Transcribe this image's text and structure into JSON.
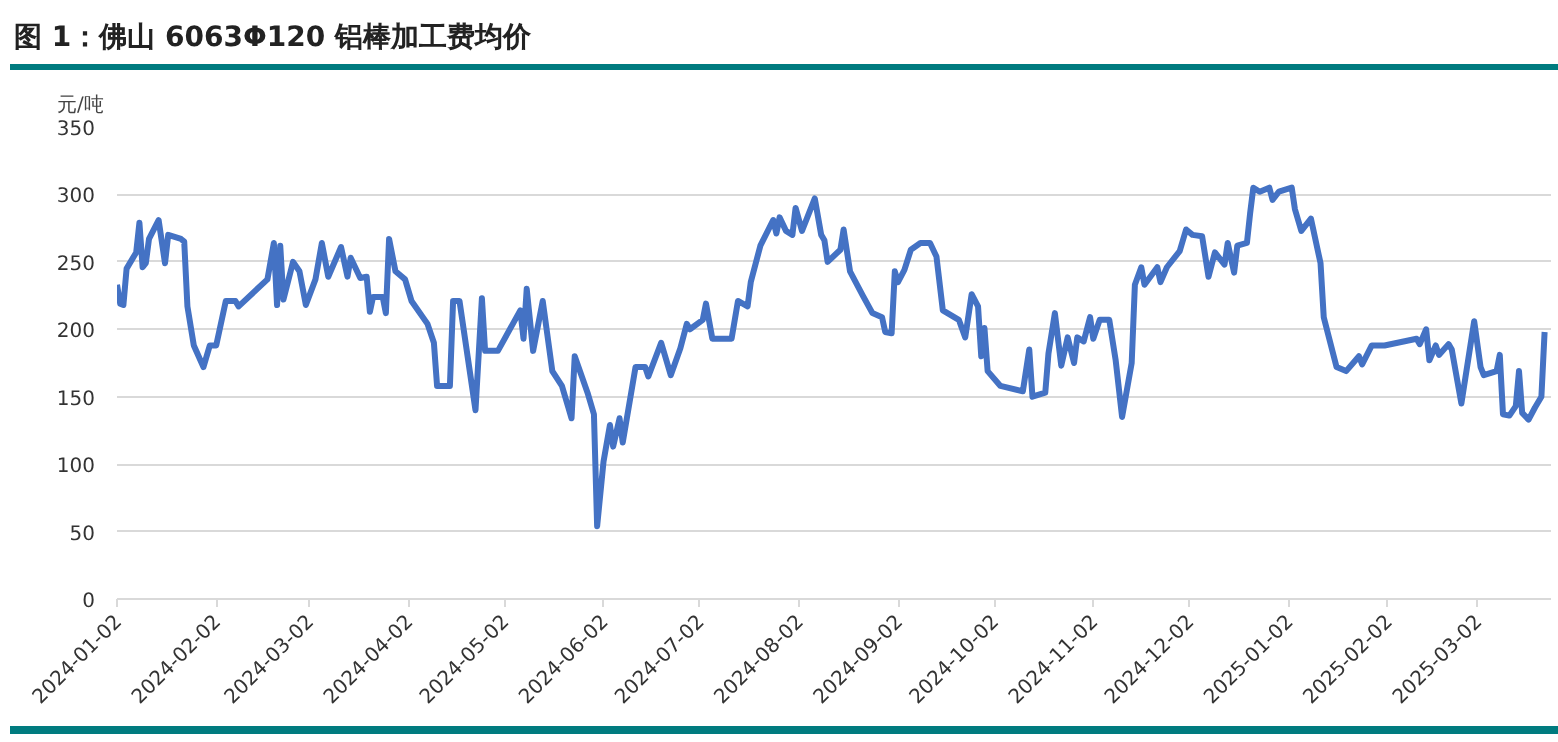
{
  "chart_data": {
    "type": "line",
    "title": "图 1：佛山 6063Φ120 铝棒加工费均价",
    "ylabel": "元/吨",
    "x": [
      "2024-01-02",
      "2024-01-03",
      "2024-01-04",
      "2024-01-05",
      "2024-01-08",
      "2024-01-09",
      "2024-01-10",
      "2024-01-11",
      "2024-01-12",
      "2024-01-15",
      "2024-01-17",
      "2024-01-18",
      "2024-01-22",
      "2024-01-23",
      "2024-01-24",
      "2024-01-26",
      "2024-01-29",
      "2024-01-31",
      "2024-02-02",
      "2024-02-05",
      "2024-02-08",
      "2024-02-09",
      "2024-02-18",
      "2024-02-20",
      "2024-02-21",
      "2024-02-22",
      "2024-02-23",
      "2024-02-26",
      "2024-02-28",
      "2024-03-01",
      "2024-03-04",
      "2024-03-06",
      "2024-03-08",
      "2024-03-12",
      "2024-03-14",
      "2024-03-15",
      "2024-03-18",
      "2024-03-20",
      "2024-03-21",
      "2024-03-22",
      "2024-03-25",
      "2024-03-26",
      "2024-03-27",
      "2024-03-29",
      "2024-04-01",
      "2024-04-03",
      "2024-04-08",
      "2024-04-10",
      "2024-04-11",
      "2024-04-15",
      "2024-04-16",
      "2024-04-18",
      "2024-04-23",
      "2024-04-25",
      "2024-04-26",
      "2024-04-30",
      "2024-05-07",
      "2024-05-08",
      "2024-05-09",
      "2024-05-11",
      "2024-05-14",
      "2024-05-17",
      "2024-05-20",
      "2024-05-22",
      "2024-05-23",
      "2024-05-24",
      "2024-05-28",
      "2024-05-30",
      "2024-05-31",
      "2024-06-02",
      "2024-06-04",
      "2024-06-05",
      "2024-06-07",
      "2024-06-08",
      "2024-06-12",
      "2024-06-15",
      "2024-06-16",
      "2024-06-20",
      "2024-06-23",
      "2024-06-26",
      "2024-06-28",
      "2024-06-29",
      "2024-07-03",
      "2024-07-04",
      "2024-07-06",
      "2024-07-12",
      "2024-07-14",
      "2024-07-17",
      "2024-07-18",
      "2024-07-21",
      "2024-07-25",
      "2024-07-26",
      "2024-07-27",
      "2024-07-29",
      "2024-07-31",
      "2024-08-01",
      "2024-08-03",
      "2024-08-07",
      "2024-08-09",
      "2024-08-10",
      "2024-08-11",
      "2024-08-15",
      "2024-08-16",
      "2024-08-18",
      "2024-08-22",
      "2024-08-25",
      "2024-08-28",
      "2024-08-29",
      "2024-08-31",
      "2024-09-01",
      "2024-09-02",
      "2024-09-04",
      "2024-09-06",
      "2024-09-09",
      "2024-09-12",
      "2024-09-14",
      "2024-09-16",
      "2024-09-21",
      "2024-09-23",
      "2024-09-25",
      "2024-09-27",
      "2024-09-28",
      "2024-09-29",
      "2024-09-30",
      "2024-10-04",
      "2024-10-11",
      "2024-10-13",
      "2024-10-14",
      "2024-10-18",
      "2024-10-19",
      "2024-10-21",
      "2024-10-23",
      "2024-10-25",
      "2024-10-27",
      "2024-10-28",
      "2024-10-30",
      "2024-11-01",
      "2024-11-02",
      "2024-11-04",
      "2024-11-07",
      "2024-11-09",
      "2024-11-11",
      "2024-11-14",
      "2024-11-15",
      "2024-11-17",
      "2024-11-18",
      "2024-11-22",
      "2024-11-23",
      "2024-11-25",
      "2024-11-29",
      "2024-12-01",
      "2024-12-03",
      "2024-12-06",
      "2024-12-08",
      "2024-12-10",
      "2024-12-13",
      "2024-12-14",
      "2024-12-16",
      "2024-12-17",
      "2024-12-20",
      "2024-12-21",
      "2024-12-22",
      "2024-12-24",
      "2024-12-27",
      "2024-12-28",
      "2024-12-30",
      "2025-01-03",
      "2025-01-04",
      "2025-01-06",
      "2025-01-09",
      "2025-01-12",
      "2025-01-13",
      "2025-01-17",
      "2025-01-20",
      "2025-01-24",
      "2025-01-25",
      "2025-01-28",
      "2025-02-01",
      "2025-02-11",
      "2025-02-12",
      "2025-02-14",
      "2025-02-15",
      "2025-02-17",
      "2025-02-18",
      "2025-02-21",
      "2025-02-22",
      "2025-02-25",
      "2025-03-01",
      "2025-03-03",
      "2025-03-04",
      "2025-03-08",
      "2025-03-09",
      "2025-03-10",
      "2025-03-12",
      "2025-03-14",
      "2025-03-15",
      "2025-03-16",
      "2025-03-18",
      "2025-03-20",
      "2025-03-22",
      "2025-03-23"
    ],
    "series": [
      {
        "color": "#4472c4",
        "values": [
          233,
          219,
          218,
          245,
          257,
          279,
          246,
          249,
          267,
          281,
          249,
          270,
          267,
          265,
          217,
          188,
          172,
          188,
          188,
          221,
          221,
          217,
          237,
          264,
          218,
          262,
          222,
          250,
          243,
          218,
          237,
          264,
          239,
          261,
          239,
          253,
          238,
          239,
          213,
          224,
          224,
          212,
          267,
          243,
          237,
          221,
          204,
          190,
          158,
          158,
          221,
          221,
          140,
          223,
          184,
          184,
          214,
          193,
          230,
          184,
          221,
          169,
          158,
          142,
          134,
          180,
          153,
          137,
          54,
          102,
          129,
          113,
          134,
          116,
          172,
          172,
          165,
          190,
          166,
          186,
          204,
          200,
          207,
          219,
          193,
          193,
          221,
          217,
          235,
          262,
          281,
          271,
          283,
          273,
          270,
          290,
          273,
          297,
          270,
          266,
          250,
          259,
          274,
          243,
          225,
          212,
          209,
          198,
          197,
          243,
          235,
          244,
          259,
          264,
          264,
          254,
          214,
          207,
          194,
          226,
          217,
          180,
          201,
          169,
          158,
          154,
          185,
          150,
          153,
          182,
          212,
          173,
          194,
          175,
          194,
          191,
          209,
          193,
          207,
          207,
          177,
          135,
          175,
          233,
          246,
          233,
          246,
          235,
          246,
          258,
          274,
          270,
          269,
          239,
          257,
          248,
          264,
          242,
          262,
          264,
          286,
          305,
          302,
          305,
          296,
          302,
          305,
          289,
          273,
          282,
          249,
          209,
          172,
          169,
          180,
          174,
          188,
          188,
          193,
          189,
          200,
          177,
          188,
          181,
          189,
          185,
          145,
          206,
          172,
          166,
          169,
          181,
          137,
          136,
          143,
          169,
          138,
          133,
          142,
          150,
          198
        ]
      }
    ],
    "xlim": [
      "2024-01-02",
      "2025-03-25"
    ],
    "xticks": [
      "2024-01-02",
      "2024-02-02",
      "2024-03-02",
      "2024-04-02",
      "2024-05-02",
      "2024-06-02",
      "2024-07-02",
      "2024-08-02",
      "2024-09-02",
      "2024-10-02",
      "2024-11-02",
      "2024-12-02",
      "2025-01-02",
      "2025-02-02",
      "2025-03-02"
    ],
    "ylim": [
      0,
      350
    ],
    "yticks": [
      0,
      50,
      100,
      150,
      200,
      250,
      300,
      350
    ],
    "grid": "y",
    "marker": "none",
    "line_style": "solid"
  }
}
